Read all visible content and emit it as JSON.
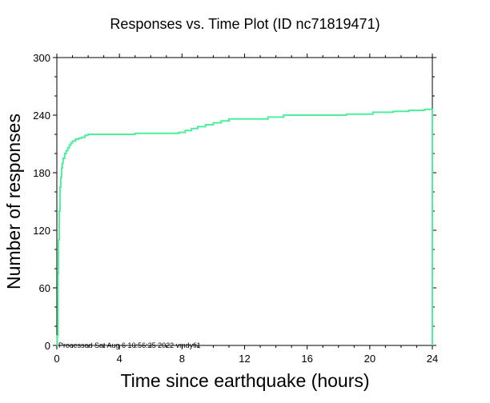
{
  "chart_data": {
    "type": "line",
    "title": "Responses vs. Time Plot (ID nc71819471)",
    "xlabel": "Time since earthquake (hours)",
    "ylabel": "Number of responses",
    "xlim": [
      0,
      24
    ],
    "ylim": [
      0,
      300
    ],
    "xticks": [
      "0",
      "4",
      "8",
      "12",
      "16",
      "20",
      "24"
    ],
    "yticks": [
      "0",
      "60",
      "120",
      "180",
      "240",
      "300"
    ],
    "xtick_values": [
      0,
      4,
      8,
      12,
      16,
      20,
      24
    ],
    "ytick_values": [
      0,
      60,
      120,
      180,
      240,
      300
    ],
    "grid": false,
    "step": true,
    "line_color": "#4def9d",
    "footnote": "Processed Sat Aug  6 10:56:25 2022 vmdyfi1",
    "series": [
      {
        "x": [
          0,
          0.03,
          0.07,
          0.1,
          0.15,
          0.2,
          0.25,
          0.3,
          0.35,
          0.4,
          0.5,
          0.6,
          0.7,
          0.8,
          0.9,
          1.0,
          1.2,
          1.4,
          1.6,
          1.8,
          2.0,
          5.0,
          7.8,
          8.2,
          8.6,
          9.0,
          9.5,
          10.0,
          10.5,
          11.0,
          13.5,
          14.5,
          18.5,
          20.2,
          21.5,
          22.5,
          23.5,
          24.0,
          24.0
        ],
        "y": [
          0,
          10,
          75,
          110,
          140,
          165,
          175,
          185,
          190,
          195,
          200,
          203,
          206,
          209,
          211,
          213,
          215,
          216,
          217,
          219,
          220,
          221,
          222,
          224,
          226,
          228,
          230,
          232,
          234,
          236,
          238,
          240,
          241,
          243,
          244,
          245,
          246,
          246,
          0
        ]
      }
    ]
  }
}
